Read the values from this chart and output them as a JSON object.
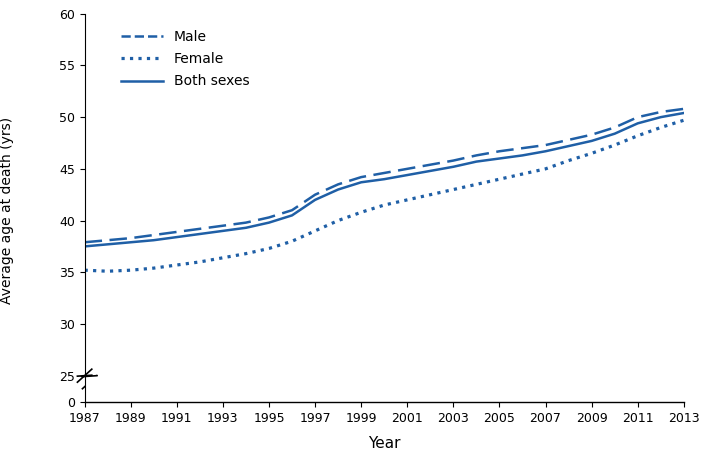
{
  "years": [
    1987,
    1988,
    1989,
    1990,
    1991,
    1992,
    1993,
    1994,
    1995,
    1996,
    1997,
    1998,
    1999,
    2000,
    2001,
    2002,
    2003,
    2004,
    2005,
    2006,
    2007,
    2008,
    2009,
    2010,
    2011,
    2012,
    2013
  ],
  "male": [
    37.9,
    38.1,
    38.3,
    38.6,
    38.9,
    39.2,
    39.5,
    39.8,
    40.3,
    41.0,
    42.5,
    43.5,
    44.2,
    44.6,
    45.0,
    45.4,
    45.8,
    46.3,
    46.7,
    47.0,
    47.3,
    47.8,
    48.3,
    49.0,
    50.0,
    50.5,
    50.8
  ],
  "female": [
    35.2,
    35.1,
    35.2,
    35.4,
    35.7,
    36.0,
    36.4,
    36.8,
    37.3,
    38.0,
    39.0,
    40.0,
    40.8,
    41.5,
    42.0,
    42.5,
    43.0,
    43.5,
    44.0,
    44.5,
    45.0,
    45.8,
    46.5,
    47.3,
    48.2,
    49.0,
    49.7
  ],
  "both": [
    37.5,
    37.7,
    37.9,
    38.1,
    38.4,
    38.7,
    39.0,
    39.3,
    39.8,
    40.5,
    42.0,
    43.0,
    43.7,
    44.0,
    44.4,
    44.8,
    45.2,
    45.7,
    46.0,
    46.3,
    46.7,
    47.2,
    47.7,
    48.4,
    49.4,
    50.0,
    50.4
  ],
  "line_color": "#1F5FA6",
  "ylabel": "Average age at death (yrs)",
  "xlabel": "Year",
  "ylim_top_bottom": 25,
  "ylim_top_top": 60,
  "ylim_bot_bottom": 0,
  "ylim_bot_top": 1.5,
  "yticks_top": [
    25,
    30,
    35,
    40,
    45,
    50,
    55,
    60
  ],
  "yticks_bot": [
    0
  ],
  "xticks": [
    1987,
    1989,
    1991,
    1993,
    1995,
    1997,
    1999,
    2001,
    2003,
    2005,
    2007,
    2009,
    2011,
    2013
  ],
  "legend_labels": [
    "Male",
    "Female",
    "Both sexes"
  ],
  "lw": 1.8
}
